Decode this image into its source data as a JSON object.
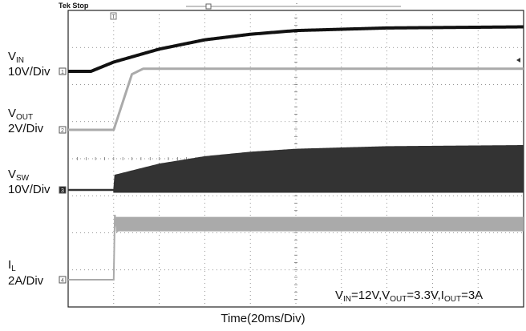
{
  "header": {
    "status": "Tek Stop"
  },
  "channels": [
    {
      "id": "vin",
      "name": "V",
      "sub": "IN",
      "scale": "10V/Div",
      "marker": "1",
      "color": "#111111"
    },
    {
      "id": "vout",
      "name": "V",
      "sub": "OUT",
      "scale": "2V/Div",
      "marker": "2",
      "color": "#aaaaaa"
    },
    {
      "id": "vsw",
      "name": "V",
      "sub": "SW",
      "scale": "10V/Div",
      "marker": "3",
      "color": "#333333"
    },
    {
      "id": "il",
      "name": "I",
      "sub": "L",
      "scale": "2A/Div",
      "marker": "4",
      "color": "#aaaaaa"
    }
  ],
  "chart_data": {
    "type": "line",
    "xlabel": "Time(20ms/Div)",
    "divisions": {
      "x": 10,
      "y": 8
    },
    "annotation": {
      "parts": [
        {
          "t": "V"
        },
        {
          "s": "IN"
        },
        {
          "t": "=12V,V"
        },
        {
          "s": "OUT"
        },
        {
          "t": "=3.3V,I"
        },
        {
          "s": "OUT"
        },
        {
          "t": "=3A"
        }
      ]
    },
    "series": [
      {
        "name": "VIN",
        "unit": "V",
        "volts_per_div": 10,
        "x_ms": [
          0,
          10,
          20,
          40,
          60,
          80,
          100,
          140,
          200
        ],
        "values": [
          0,
          0,
          2.5,
          6,
          8.5,
          10,
          11,
          11.7,
          12
        ]
      },
      {
        "name": "VOUT",
        "unit": "V",
        "volts_per_div": 2,
        "x_ms": [
          0,
          20,
          28,
          33,
          200
        ],
        "values": [
          0,
          0,
          3.0,
          3.3,
          3.3
        ]
      },
      {
        "name": "VSW",
        "unit": "V",
        "volts_per_div": 10,
        "x_ms": [
          0,
          20,
          20.5,
          40,
          60,
          80,
          100,
          140,
          200
        ],
        "values": [
          0,
          0,
          4,
          7,
          9,
          10.2,
          11,
          11.7,
          12
        ]
      },
      {
        "name": "IL",
        "unit": "A",
        "amps_per_div": 2,
        "x_ms": [
          0,
          20,
          20.5,
          21.5,
          25,
          200
        ],
        "values": [
          0,
          0,
          3.5,
          2.6,
          3.0,
          3.0
        ]
      }
    ]
  }
}
